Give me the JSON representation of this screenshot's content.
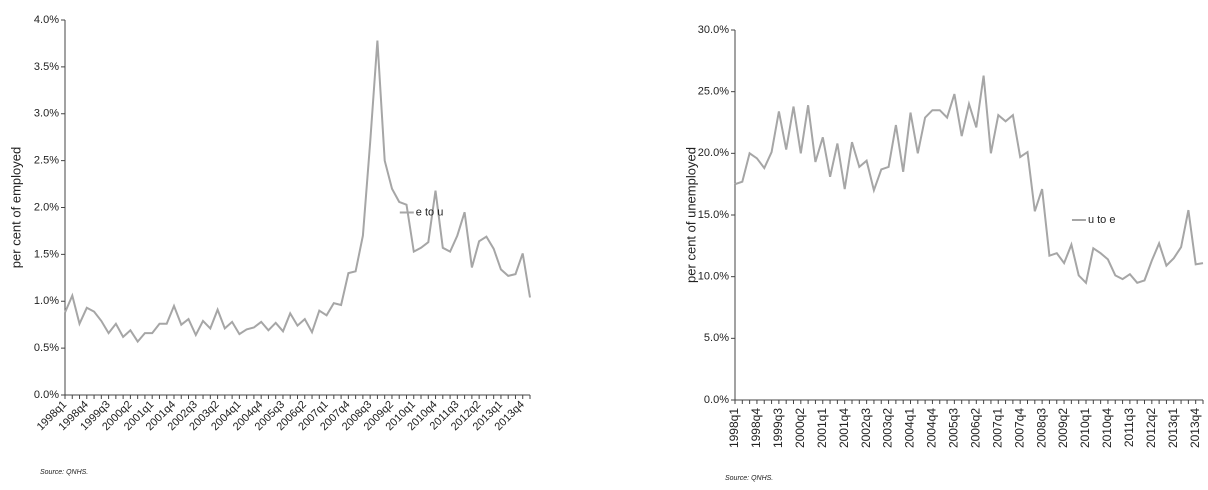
{
  "chart_data": [
    {
      "type": "line",
      "y_label": "per cent of employed",
      "source": "Source: QNHS.",
      "categories": [
        "1998q1",
        null,
        null,
        "1998q4",
        null,
        null,
        "1999q3",
        null,
        null,
        "2000q2",
        null,
        null,
        "2001q1",
        null,
        null,
        "2001q4",
        null,
        null,
        "2002q3",
        null,
        null,
        "2003q2",
        null,
        null,
        "2004q1",
        null,
        null,
        "2004q4",
        null,
        null,
        "2005q3",
        null,
        null,
        "2006q2",
        null,
        null,
        "2007q1",
        null,
        null,
        "2007q4",
        null,
        null,
        "2008q3",
        null,
        null,
        "2009q2",
        null,
        null,
        "2010q1",
        null,
        null,
        "2010q4",
        null,
        null,
        "2011q3",
        null,
        null,
        "2012q2",
        null,
        null,
        "2013q1",
        null,
        null,
        "2013q4",
        null
      ],
      "series": [
        {
          "name": "e to u",
          "color": "#a6a6a6",
          "values": [
            0.88,
            1.06,
            0.76,
            0.93,
            0.89,
            0.79,
            0.66,
            0.76,
            0.62,
            0.69,
            0.57,
            0.66,
            0.66,
            0.76,
            0.76,
            0.95,
            0.75,
            0.81,
            0.64,
            0.79,
            0.71,
            0.91,
            0.71,
            0.78,
            0.65,
            0.7,
            0.72,
            0.78,
            0.69,
            0.77,
            0.68,
            0.87,
            0.74,
            0.81,
            0.67,
            0.9,
            0.85,
            0.98,
            0.96,
            1.3,
            1.32,
            1.7,
            2.7,
            3.78,
            2.5,
            2.2,
            2.06,
            2.03,
            1.53,
            1.57,
            1.63,
            2.18,
            1.57,
            1.53,
            1.7,
            1.95,
            1.36,
            1.64,
            1.69,
            1.56,
            1.34,
            1.27,
            1.29,
            1.51,
            1.04
          ]
        }
      ],
      "ylim": [
        0,
        4
      ],
      "yticks": [
        {
          "value": 0,
          "label": "0.0%"
        },
        {
          "value": 0.5,
          "label": "0.5%"
        },
        {
          "value": 1,
          "label": "1.0%"
        },
        {
          "value": 1.5,
          "label": "1.5%"
        },
        {
          "value": 2,
          "label": "2.0%"
        },
        {
          "value": 2.5,
          "label": "2.5%"
        },
        {
          "value": 3,
          "label": "3.0%"
        },
        {
          "value": 3.5,
          "label": "3.5%"
        },
        {
          "value": 4,
          "label": "4.0%"
        }
      ],
      "grid": false,
      "legend": "center-right"
    },
    {
      "type": "line",
      "y_label": "per cent of unemployed",
      "source": "Source: QNHS.",
      "categories": [
        "1998q1",
        null,
        null,
        "1998q4",
        null,
        null,
        "1999q3",
        null,
        null,
        "2000q2",
        null,
        null,
        "2001q1",
        null,
        null,
        "2001q4",
        null,
        null,
        "2002q3",
        null,
        null,
        "2003q2",
        null,
        null,
        "2004q1",
        null,
        null,
        "2004q4",
        null,
        null,
        "2005q3",
        null,
        null,
        "2006q2",
        null,
        null,
        "2007q1",
        null,
        null,
        "2007q4",
        null,
        null,
        "2008q3",
        null,
        null,
        "2009q2",
        null,
        null,
        "2010q1",
        null,
        null,
        "2010q4",
        null,
        null,
        "2011q3",
        null,
        null,
        "2012q2",
        null,
        null,
        "2013q1",
        null,
        null,
        "2013q4",
        null
      ],
      "series": [
        {
          "name": "u to e",
          "color": "#a6a6a6",
          "values": [
            17.5,
            17.7,
            20.0,
            19.6,
            18.8,
            20.1,
            23.4,
            20.3,
            23.8,
            20.0,
            23.9,
            19.3,
            21.3,
            18.1,
            20.8,
            17.1,
            20.9,
            18.9,
            19.4,
            17.0,
            18.7,
            18.9,
            22.3,
            18.5,
            23.3,
            20.0,
            22.9,
            23.5,
            23.5,
            22.9,
            24.8,
            21.4,
            24.0,
            22.1,
            26.3,
            20.0,
            23.1,
            22.6,
            23.1,
            19.7,
            20.1,
            15.3,
            17.1,
            11.7,
            11.9,
            11.1,
            12.6,
            10.1,
            9.5,
            12.3,
            11.9,
            11.4,
            10.1,
            9.8,
            10.2,
            9.5,
            9.7,
            11.3,
            12.7,
            10.9,
            11.5,
            12.4,
            15.4,
            11.0,
            11.1
          ]
        }
      ],
      "ylim": [
        0,
        30
      ],
      "yticks": [
        {
          "value": 0,
          "label": "0.0%"
        },
        {
          "value": 5,
          "label": "5.0%"
        },
        {
          "value": 10,
          "label": "10.0%"
        },
        {
          "value": 15,
          "label": "15.0%"
        },
        {
          "value": 20,
          "label": "20.0%"
        },
        {
          "value": 25,
          "label": "25.0%"
        },
        {
          "value": 30,
          "label": "30.0%"
        }
      ],
      "grid": false,
      "legend": "center-right"
    }
  ]
}
